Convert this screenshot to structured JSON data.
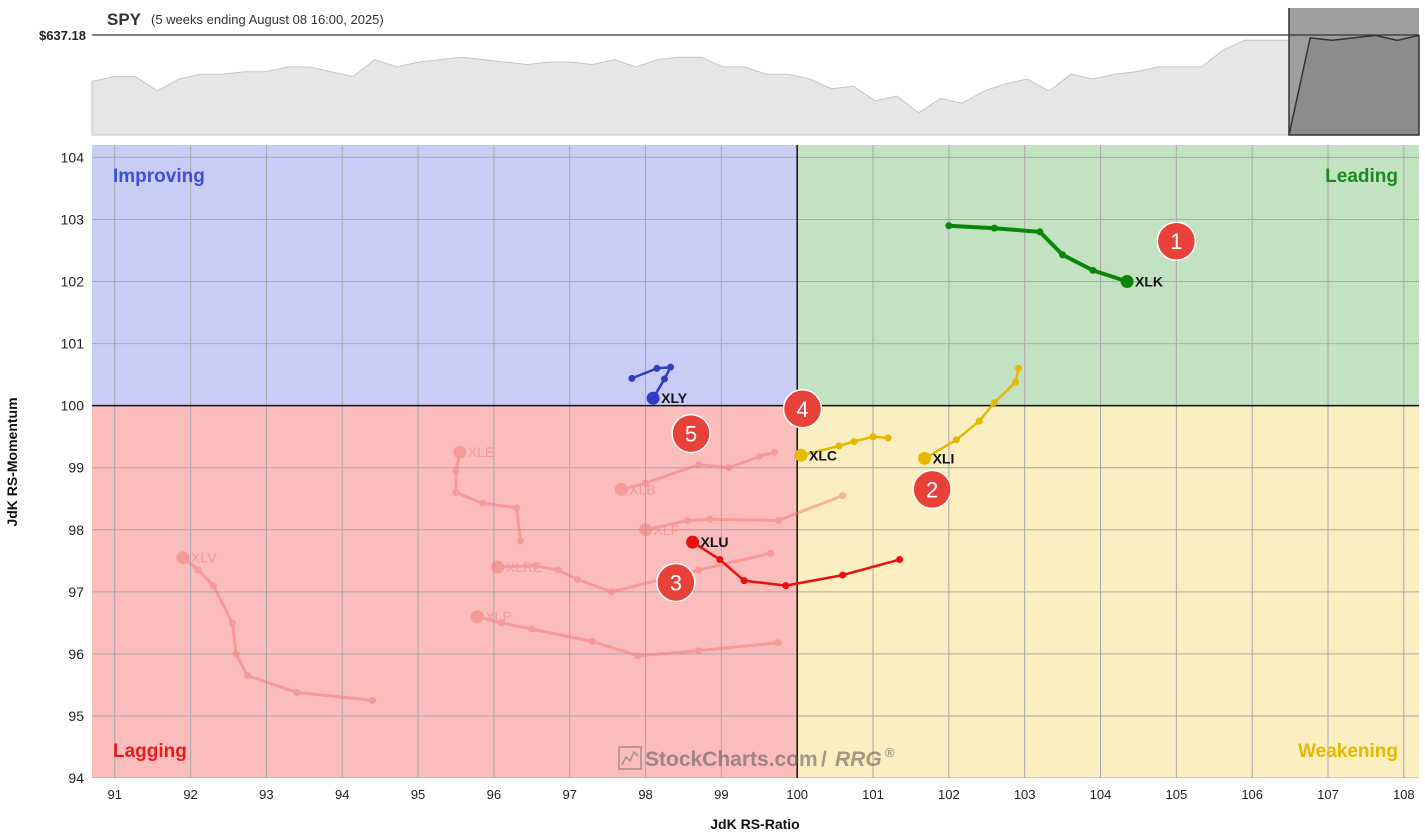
{
  "header": {
    "symbol": "SPY",
    "period": "(5 weeks ending August 08 16:00, 2025)",
    "price_label": "$637.18"
  },
  "watermark": {
    "brand": "StockCharts.com",
    "product": "RRG"
  },
  "colors": {
    "improving_bg": "#c9cdf5",
    "leading_bg": "#c3e2c1",
    "lagging_bg": "#fbbcbc",
    "weakening_bg": "#fbeec0",
    "improving_label": "#3d4fd8",
    "leading_label": "#1e8a1e",
    "lagging_label": "#e81c1c",
    "weakening_label": "#e6b800",
    "badge": "#e8413a"
  },
  "chart_data": [
    {
      "type": "area",
      "title": "SPY",
      "subtitle": "(5 weeks ending August 08 16:00, 2025)",
      "last_value_label": "$637.18",
      "series": [
        {
          "values": [
            618,
            620,
            620,
            614,
            619,
            621,
            621,
            622,
            622,
            624,
            624,
            622,
            620,
            627,
            624,
            626,
            627,
            628,
            627,
            626,
            625,
            626,
            626,
            625,
            627,
            624,
            627,
            628,
            628,
            624,
            624,
            621,
            621,
            619,
            615,
            616,
            610,
            612,
            605,
            611,
            609,
            614,
            617,
            619,
            614,
            621,
            619,
            621,
            622,
            624,
            624,
            624,
            631,
            635,
            635,
            635,
            636,
            635,
            636,
            637,
            635,
            637
          ]
        }
      ]
    },
    {
      "type": "scatter",
      "subtype": "relative-rotation-graph",
      "xlabel": "JdK RS-Ratio",
      "ylabel": "JdK RS-Momentum",
      "xlim": [
        90.7,
        108.2
      ],
      "ylim": [
        94,
        104.2
      ],
      "x_ticks": [
        91,
        92,
        93,
        94,
        95,
        96,
        97,
        98,
        99,
        100,
        101,
        102,
        103,
        104,
        105,
        106,
        107,
        108
      ],
      "y_ticks": [
        94,
        95,
        96,
        97,
        98,
        99,
        100,
        101,
        102,
        103,
        104
      ],
      "center": [
        100,
        100
      ],
      "grid": true,
      "quadrants": [
        {
          "name": "Improving",
          "position": "top-left"
        },
        {
          "name": "Leading",
          "position": "top-right"
        },
        {
          "name": "Lagging",
          "position": "bottom-left"
        },
        {
          "name": "Weakening",
          "position": "bottom-right"
        }
      ],
      "series": [
        {
          "name": "XLK",
          "color": "#0a870a",
          "faded": false,
          "points": [
            [
              102.0,
              102.9
            ],
            [
              102.6,
              102.86
            ],
            [
              103.2,
              102.8
            ],
            [
              103.5,
              102.43
            ],
            [
              103.9,
              102.18
            ],
            [
              104.35,
              102.0
            ]
          ]
        },
        {
          "name": "XLI",
          "color": "#e6b800",
          "faded": false,
          "points": [
            [
              102.92,
              100.6
            ],
            [
              102.88,
              100.38
            ],
            [
              102.6,
              100.05
            ],
            [
              102.4,
              99.75
            ],
            [
              102.1,
              99.45
            ],
            [
              101.68,
              99.15
            ]
          ]
        },
        {
          "name": "XLC",
          "color": "#e6b800",
          "faded": false,
          "points": [
            [
              101.2,
              99.48
            ],
            [
              101.0,
              99.5
            ],
            [
              100.75,
              99.42
            ],
            [
              100.55,
              99.35
            ],
            [
              100.05,
              99.2
            ]
          ]
        },
        {
          "name": "XLU",
          "color": "#e81010",
          "faded": false,
          "points": [
            [
              101.35,
              97.52
            ],
            [
              100.6,
              97.27
            ],
            [
              99.85,
              97.1
            ],
            [
              99.3,
              97.18
            ],
            [
              98.98,
              97.52
            ],
            [
              98.62,
              97.8
            ]
          ]
        },
        {
          "name": "XLY",
          "color": "#2e3cc8",
          "faded": false,
          "points": [
            [
              97.82,
              100.44
            ],
            [
              98.15,
              100.6
            ],
            [
              98.33,
              100.62
            ],
            [
              98.25,
              100.43
            ],
            [
              98.1,
              100.12
            ]
          ]
        },
        {
          "name": "XLE",
          "color": "#f07878",
          "faded": true,
          "points": [
            [
              96.35,
              97.82
            ],
            [
              96.3,
              98.35
            ],
            [
              95.85,
              98.43
            ],
            [
              95.5,
              98.6
            ],
            [
              95.5,
              98.95
            ],
            [
              95.55,
              99.25
            ]
          ]
        },
        {
          "name": "XLB",
          "color": "#f07878",
          "faded": true,
          "points": [
            [
              99.7,
              99.25
            ],
            [
              99.5,
              99.18
            ],
            [
              99.1,
              99.0
            ],
            [
              98.7,
              99.05
            ],
            [
              98.0,
              98.75
            ],
            [
              97.68,
              98.65
            ]
          ]
        },
        {
          "name": "XLF",
          "color": "#f07878",
          "faded": true,
          "points": [
            [
              100.6,
              98.55
            ],
            [
              99.75,
              98.15
            ],
            [
              98.85,
              98.17
            ],
            [
              98.55,
              98.15
            ],
            [
              98.0,
              98.0
            ]
          ]
        },
        {
          "name": "XLRE",
          "color": "#f07878",
          "faded": true,
          "points": [
            [
              99.65,
              97.62
            ],
            [
              98.7,
              97.35
            ],
            [
              97.55,
              97.0
            ],
            [
              97.1,
              97.2
            ],
            [
              96.85,
              97.35
            ],
            [
              96.55,
              97.42
            ],
            [
              96.05,
              97.4
            ]
          ]
        },
        {
          "name": "XLP",
          "color": "#f07878",
          "faded": true,
          "points": [
            [
              99.75,
              96.18
            ],
            [
              98.7,
              96.05
            ],
            [
              97.9,
              95.97
            ],
            [
              97.3,
              96.2
            ],
            [
              96.5,
              96.4
            ],
            [
              96.1,
              96.5
            ],
            [
              95.78,
              96.6
            ]
          ]
        },
        {
          "name": "XLV",
          "color": "#f07878",
          "faded": true,
          "points": [
            [
              94.4,
              95.25
            ],
            [
              93.4,
              95.38
            ],
            [
              92.75,
              95.65
            ],
            [
              92.6,
              96.0
            ],
            [
              92.55,
              96.5
            ],
            [
              92.3,
              97.1
            ],
            [
              92.1,
              97.35
            ],
            [
              91.9,
              97.55
            ]
          ]
        }
      ],
      "annotations": [
        {
          "label": "1",
          "at": [
            105.0,
            102.65
          ]
        },
        {
          "label": "2",
          "at": [
            101.78,
            98.65
          ]
        },
        {
          "label": "3",
          "at": [
            98.4,
            97.15
          ]
        },
        {
          "label": "4",
          "at": [
            100.07,
            99.95
          ]
        },
        {
          "label": "5",
          "at": [
            98.6,
            99.55
          ]
        }
      ]
    }
  ]
}
